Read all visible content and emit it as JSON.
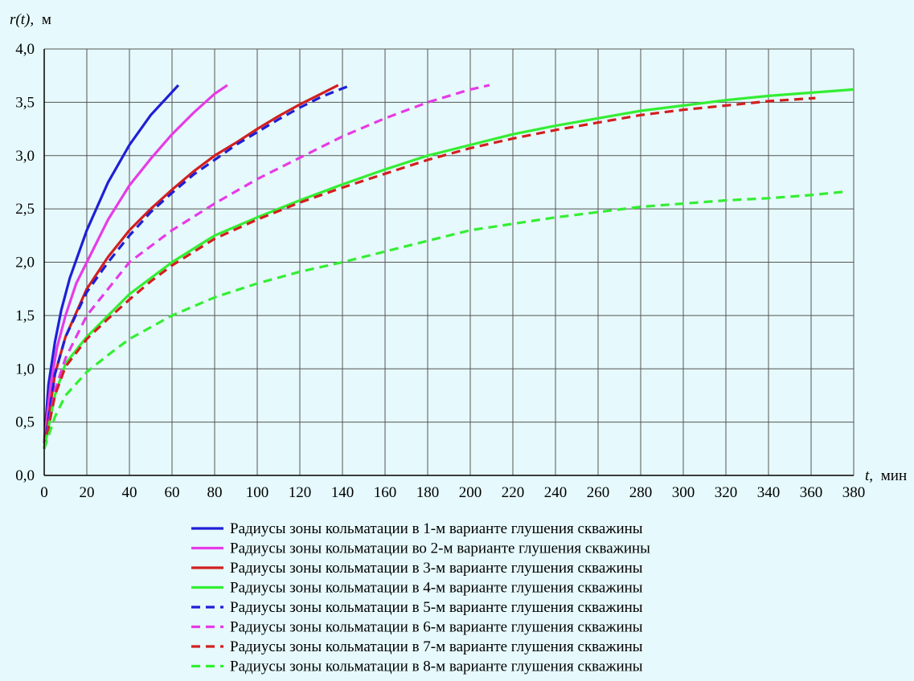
{
  "chart_data": {
    "type": "line",
    "title": "",
    "ylabel_italic": "r(t),",
    "ylabel_unit": "м",
    "xlabel_italic": "t,",
    "xlabel_unit": "мин",
    "xlim": [
      0,
      380
    ],
    "ylim": [
      0,
      4.0
    ],
    "x_ticks": [
      0,
      20,
      40,
      60,
      80,
      100,
      120,
      140,
      160,
      180,
      200,
      220,
      240,
      260,
      280,
      300,
      320,
      340,
      360,
      380
    ],
    "x_tick_labels": [
      "0",
      "20",
      "40",
      "60",
      "80",
      "100",
      "120",
      "140",
      "160",
      "180",
      "200",
      "220",
      "240",
      "260",
      "280",
      "300",
      "320",
      "340",
      "360",
      "380"
    ],
    "y_ticks": [
      0,
      0.5,
      1.0,
      1.5,
      2.0,
      2.5,
      3.0,
      3.5,
      4.0
    ],
    "y_tick_labels": [
      "0,0",
      "0,5",
      "1,0",
      "1,5",
      "2,0",
      "2,5",
      "3,0",
      "3,5",
      "4,0"
    ],
    "grid": true,
    "legend_position": "bottom",
    "series": [
      {
        "name": "Радиусы зоны кольматации в 1-м варианте глушения скважины",
        "color": "#1f1fd6",
        "style": "solid",
        "points": [
          [
            0,
            0.3
          ],
          [
            2,
            0.85
          ],
          [
            5,
            1.25
          ],
          [
            8,
            1.55
          ],
          [
            12,
            1.85
          ],
          [
            20,
            2.3
          ],
          [
            30,
            2.75
          ],
          [
            40,
            3.1
          ],
          [
            50,
            3.38
          ],
          [
            63,
            3.66
          ]
        ]
      },
      {
        "name": "Радиусы зоны кольматации во 2-м варианте глушения скважины",
        "color": "#e63be6",
        "style": "solid",
        "points": [
          [
            0,
            0.3
          ],
          [
            3,
            0.85
          ],
          [
            6,
            1.2
          ],
          [
            10,
            1.5
          ],
          [
            15,
            1.8
          ],
          [
            20,
            2.0
          ],
          [
            30,
            2.4
          ],
          [
            40,
            2.72
          ],
          [
            50,
            2.97
          ],
          [
            60,
            3.2
          ],
          [
            70,
            3.4
          ],
          [
            80,
            3.58
          ],
          [
            86,
            3.66
          ]
        ]
      },
      {
        "name": "Радиусы зоны кольматации в 3-м варианте глушения скважины",
        "color": "#d31f1f",
        "style": "solid",
        "points": [
          [
            0,
            0.25
          ],
          [
            5,
            0.95
          ],
          [
            10,
            1.3
          ],
          [
            20,
            1.75
          ],
          [
            30,
            2.05
          ],
          [
            40,
            2.3
          ],
          [
            50,
            2.5
          ],
          [
            60,
            2.68
          ],
          [
            70,
            2.85
          ],
          [
            80,
            3.0
          ],
          [
            90,
            3.12
          ],
          [
            100,
            3.25
          ],
          [
            110,
            3.37
          ],
          [
            120,
            3.48
          ],
          [
            130,
            3.58
          ],
          [
            138,
            3.66
          ]
        ]
      },
      {
        "name": "Радиусы зоны кольматации в 4-м варианте глушения скважины",
        "color": "#33ee33",
        "style": "solid",
        "points": [
          [
            0,
            0.25
          ],
          [
            5,
            0.75
          ],
          [
            10,
            1.05
          ],
          [
            20,
            1.3
          ],
          [
            30,
            1.5
          ],
          [
            40,
            1.7
          ],
          [
            50,
            1.85
          ],
          [
            60,
            2.0
          ],
          [
            80,
            2.25
          ],
          [
            100,
            2.42
          ],
          [
            120,
            2.58
          ],
          [
            140,
            2.73
          ],
          [
            160,
            2.87
          ],
          [
            180,
            3.0
          ],
          [
            200,
            3.1
          ],
          [
            220,
            3.2
          ],
          [
            240,
            3.28
          ],
          [
            260,
            3.35
          ],
          [
            280,
            3.42
          ],
          [
            300,
            3.47
          ],
          [
            320,
            3.52
          ],
          [
            340,
            3.56
          ],
          [
            360,
            3.59
          ],
          [
            380,
            3.62
          ]
        ]
      },
      {
        "name": "Радиусы зоны кольматации в 5-м варианте глушения скважины",
        "color": "#1f1fd6",
        "style": "dashed",
        "points": [
          [
            0,
            0.25
          ],
          [
            5,
            0.95
          ],
          [
            10,
            1.3
          ],
          [
            20,
            1.72
          ],
          [
            30,
            2.0
          ],
          [
            40,
            2.25
          ],
          [
            50,
            2.47
          ],
          [
            60,
            2.65
          ],
          [
            70,
            2.82
          ],
          [
            80,
            2.96
          ],
          [
            90,
            3.1
          ],
          [
            100,
            3.22
          ],
          [
            110,
            3.34
          ],
          [
            120,
            3.45
          ],
          [
            130,
            3.55
          ],
          [
            140,
            3.63
          ],
          [
            144,
            3.66
          ]
        ]
      },
      {
        "name": "Радиусы зоны кольматации в 6-м варианте глушения скважины",
        "color": "#e63be6",
        "style": "dashed",
        "points": [
          [
            0,
            0.25
          ],
          [
            5,
            0.8
          ],
          [
            10,
            1.1
          ],
          [
            20,
            1.5
          ],
          [
            30,
            1.75
          ],
          [
            40,
            2.0
          ],
          [
            60,
            2.3
          ],
          [
            80,
            2.55
          ],
          [
            100,
            2.78
          ],
          [
            120,
            2.98
          ],
          [
            140,
            3.18
          ],
          [
            160,
            3.35
          ],
          [
            180,
            3.5
          ],
          [
            200,
            3.62
          ],
          [
            209,
            3.66
          ]
        ]
      },
      {
        "name": "Радиусы зоны кольматации в 7-м варианте глушения скважины",
        "color": "#d31f1f",
        "style": "dashed",
        "points": [
          [
            0,
            0.25
          ],
          [
            5,
            0.75
          ],
          [
            10,
            1.02
          ],
          [
            20,
            1.28
          ],
          [
            30,
            1.47
          ],
          [
            40,
            1.65
          ],
          [
            50,
            1.82
          ],
          [
            60,
            1.97
          ],
          [
            80,
            2.22
          ],
          [
            100,
            2.4
          ],
          [
            120,
            2.56
          ],
          [
            140,
            2.7
          ],
          [
            160,
            2.83
          ],
          [
            180,
            2.96
          ],
          [
            200,
            3.07
          ],
          [
            220,
            3.16
          ],
          [
            240,
            3.24
          ],
          [
            260,
            3.31
          ],
          [
            280,
            3.38
          ],
          [
            300,
            3.43
          ],
          [
            320,
            3.47
          ],
          [
            340,
            3.51
          ],
          [
            362,
            3.54
          ]
        ]
      },
      {
        "name": "Радиусы зоны кольматации в 8-м варианте глушения скважины",
        "color": "#33ee33",
        "style": "dashed",
        "points": [
          [
            0,
            0.25
          ],
          [
            5,
            0.55
          ],
          [
            10,
            0.75
          ],
          [
            20,
            0.97
          ],
          [
            30,
            1.13
          ],
          [
            40,
            1.28
          ],
          [
            60,
            1.5
          ],
          [
            80,
            1.67
          ],
          [
            100,
            1.8
          ],
          [
            120,
            1.91
          ],
          [
            140,
            2.0
          ],
          [
            160,
            2.1
          ],
          [
            180,
            2.2
          ],
          [
            200,
            2.3
          ],
          [
            220,
            2.36
          ],
          [
            240,
            2.42
          ],
          [
            260,
            2.47
          ],
          [
            280,
            2.52
          ],
          [
            300,
            2.55
          ],
          [
            320,
            2.58
          ],
          [
            340,
            2.6
          ],
          [
            360,
            2.63
          ],
          [
            375,
            2.66
          ]
        ]
      }
    ]
  }
}
